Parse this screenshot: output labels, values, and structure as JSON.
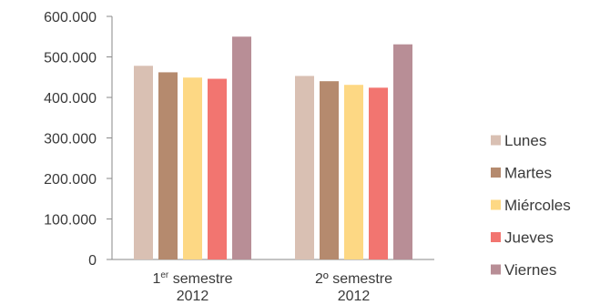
{
  "chart_data": {
    "type": "bar",
    "categories": [
      {
        "main": "1",
        "sup": "er",
        "rest": " semestre",
        "line2": "2012"
      },
      {
        "main": "2º semestre",
        "sup": "",
        "rest": "",
        "line2": "2012"
      }
    ],
    "series": [
      {
        "name": "Lunes",
        "color": "#d9c0b3",
        "values": [
          478000,
          453000
        ]
      },
      {
        "name": "Martes",
        "color": "#b58a6e",
        "values": [
          462000,
          440000
        ]
      },
      {
        "name": "Miércoles",
        "color": "#fdd884",
        "values": [
          449000,
          431000
        ]
      },
      {
        "name": "Jueves",
        "color": "#f27570",
        "values": [
          446000,
          424000
        ]
      },
      {
        "name": "Viernes",
        "color": "#b88e96",
        "values": [
          550000,
          531000
        ]
      }
    ],
    "ylim": [
      0,
      600000
    ],
    "yticks": [
      0,
      100000,
      200000,
      300000,
      400000,
      500000,
      600000
    ],
    "ytick_labels": [
      "0",
      "100.000",
      "200.000",
      "300.000",
      "400.000",
      "500.000",
      "600.000"
    ],
    "legend_position": "right",
    "grid": false,
    "title": "",
    "xlabel": "",
    "ylabel": ""
  }
}
